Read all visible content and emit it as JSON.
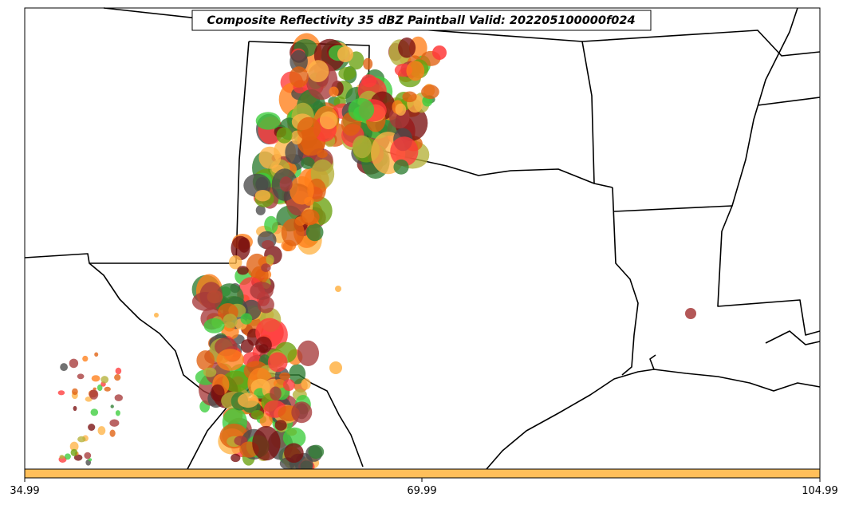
{
  "title": "Composite Reflectivity 35 dBZ Paintball Valid: 202205100000f024",
  "colorbar": {
    "color": "#ffbf5a",
    "ticks": [
      "34.99",
      "69.99",
      "104.99"
    ]
  },
  "paintball_colors": [
    "#ff3a3a",
    "#ff7f1a",
    "#ffb347",
    "#b5b13a",
    "#2e7d32",
    "#3ccd3c",
    "#a63a3a",
    "#7a1010",
    "#4a4a4a",
    "#6aa210",
    "#e06010"
  ]
}
